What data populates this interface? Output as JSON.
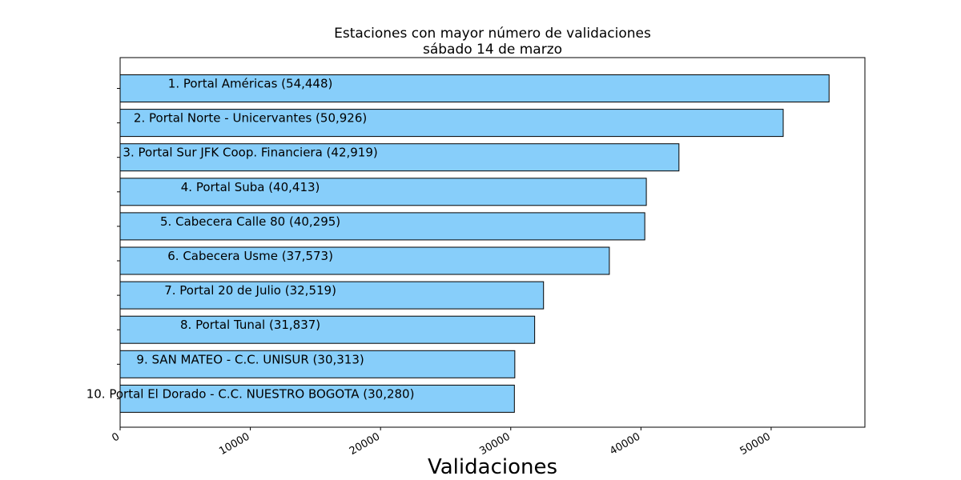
{
  "chart_data": {
    "type": "bar",
    "orientation": "horizontal",
    "title": "Estaciones con mayor número de validaciones",
    "subtitle": "sábado 14 de marzo",
    "xlabel": "Validaciones",
    "ylabel": "",
    "xlim": [
      0,
      57200
    ],
    "xticks": [
      0,
      10000,
      20000,
      30000,
      40000,
      50000
    ],
    "grid": false,
    "bar_color": "#87CEFA",
    "edge_color": "#000000",
    "categories": [
      "1. Portal Américas (54,448)",
      "2. Portal Norte - Unicervantes (50,926)",
      "3. Portal Sur JFK Coop. Financiera (42,919)",
      "4. Portal Suba (40,413)",
      "5. Cabecera Calle 80 (40,295)",
      "6. Cabecera Usme (37,573)",
      "7. Portal 20 de Julio (32,519)",
      "8. Portal Tunal (31,837)",
      "9. SAN MATEO - C.C. UNISUR (30,313)",
      "10. Portal El Dorado - C.C. NUESTRO BOGOTA (30,280)"
    ],
    "values": [
      54448,
      50926,
      42919,
      40413,
      40295,
      37573,
      32519,
      31837,
      30313,
      30280
    ]
  }
}
